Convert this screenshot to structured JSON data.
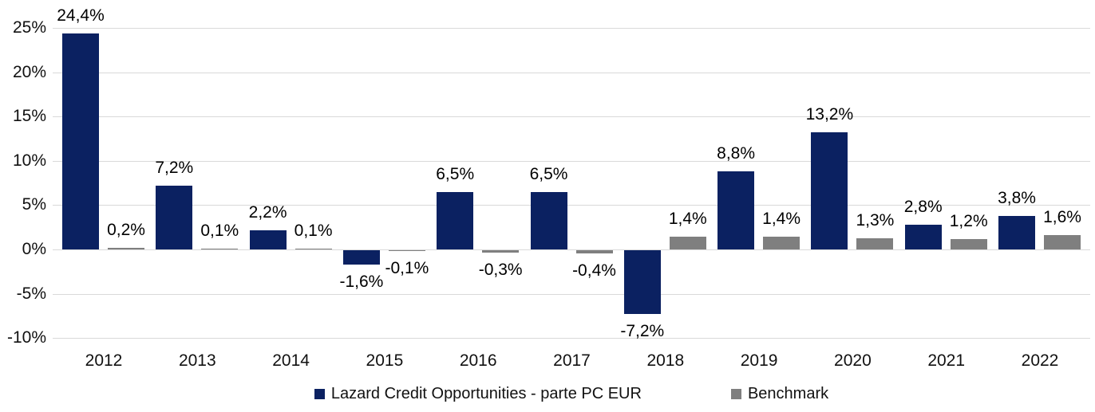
{
  "chart_data": {
    "type": "bar",
    "title": "",
    "xlabel": "",
    "ylabel": "",
    "categories": [
      "2012",
      "2013",
      "2014",
      "2015",
      "2016",
      "2017",
      "2018",
      "2019",
      "2020",
      "2021",
      "2022"
    ],
    "series": [
      {
        "name": "Lazard Credit Opportunities - parte PC EUR",
        "color": "#0b2161",
        "values": [
          24.4,
          7.2,
          2.2,
          -1.6,
          6.5,
          6.5,
          -7.2,
          8.8,
          13.2,
          2.8,
          3.8
        ],
        "labels": [
          "24,4%",
          "7,2%",
          "2,2%",
          "-1,6%",
          "6,5%",
          "6,5%",
          "-7,2%",
          "8,8%",
          "13,2%",
          "2,8%",
          "3,8%"
        ]
      },
      {
        "name": "Benchmark",
        "color": "#7f7f7f",
        "values": [
          0.2,
          0.1,
          0.1,
          -0.1,
          -0.3,
          -0.4,
          1.4,
          1.4,
          1.3,
          1.2,
          1.6
        ],
        "labels": [
          "0,2%",
          "0,1%",
          "0,1%",
          "-0,1%",
          "-0,3%",
          "-0,4%",
          "1,4%",
          "1,4%",
          "1,3%",
          "1,2%",
          "1,6%"
        ]
      }
    ],
    "y_axis": {
      "min": -10,
      "max": 25,
      "step": 5,
      "tick_values": [
        25,
        20,
        15,
        10,
        5,
        0,
        -5,
        -10
      ],
      "tick_labels": [
        "25%",
        "20%",
        "15%",
        "10%",
        "5%",
        "0%",
        "-5%",
        "-10%"
      ]
    },
    "grid": true,
    "legend_position": "bottom",
    "colors": {
      "gridline": "#d9d9d9",
      "text": "#000000",
      "background": "#ffffff"
    }
  }
}
